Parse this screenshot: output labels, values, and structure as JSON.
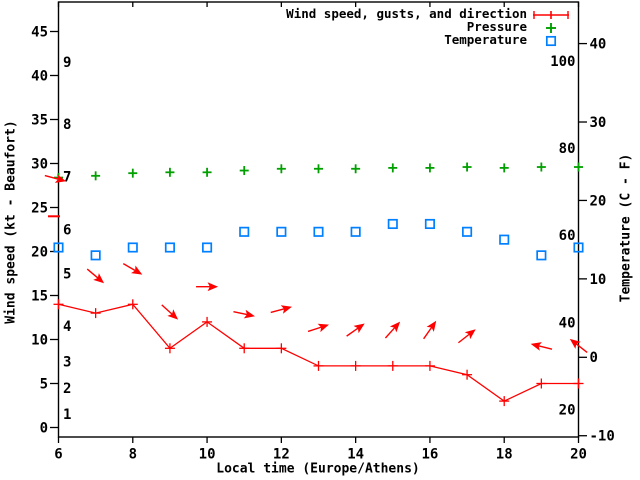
{
  "chart_data": {
    "type": "line",
    "title": "",
    "xlabel": "Local time (Europe/Athens)",
    "ylabel": "Wind speed (kt - Beaufort)",
    "y2label": "Temperature (C - F)",
    "grid": false,
    "legend_position": "top-right",
    "x": [
      6,
      7,
      8,
      9,
      10,
      11,
      12,
      13,
      14,
      15,
      16,
      17,
      18,
      19,
      20
    ],
    "x_tick_labels": [
      "6",
      "8",
      "10",
      "12",
      "14",
      "16",
      "18",
      "20"
    ],
    "x_ticks": [
      6,
      8,
      10,
      12,
      14,
      16,
      18,
      20
    ],
    "left_axis": {
      "unit": "kt",
      "ticks": [
        0,
        5,
        10,
        15,
        20,
        25,
        30,
        35,
        40,
        45
      ],
      "range": [
        -1.1,
        48.3
      ],
      "beaufort_scale": [
        {
          "label": "1",
          "kt": 1.5
        },
        {
          "label": "2",
          "kt": 4.5
        },
        {
          "label": "3",
          "kt": 7.5
        },
        {
          "label": "4",
          "kt": 11.5
        },
        {
          "label": "5",
          "kt": 17.5
        },
        {
          "label": "6",
          "kt": 22.5
        },
        {
          "label": "7",
          "kt": 28.5
        },
        {
          "label": "8",
          "kt": 34.5
        },
        {
          "label": "9",
          "kt": 41.5
        }
      ]
    },
    "right_axis": {
      "unit": "C",
      "ticks_C": [
        -10,
        0,
        10,
        20,
        30,
        40
      ],
      "labels_F": [
        20,
        40,
        60,
        80,
        100
      ],
      "range_C": [
        -10.2,
        45.4
      ]
    },
    "series": [
      {
        "name": "Wind speed, gusts, and direction",
        "marker": "errorbar-line",
        "color": "#ff0000",
        "axis": "left",
        "values_kt": [
          14,
          13,
          14,
          9,
          12,
          9,
          9,
          7,
          7,
          7,
          7,
          6,
          3,
          5,
          5
        ],
        "gust_ticks": [
          {
            "t": 6,
            "kt": 24
          }
        ],
        "direction_arrows": [
          {
            "t": 6,
            "kt": 28.3,
            "angle": 15,
            "dx": -3
          },
          {
            "t": 7,
            "kt": 17.2,
            "angle": 40,
            "dx": 0
          },
          {
            "t": 8,
            "kt": 18.0,
            "angle": 30,
            "dx": 0
          },
          {
            "t": 9,
            "kt": 13.1,
            "angle": 42,
            "dx": 0
          },
          {
            "t": 10,
            "kt": 16.0,
            "angle": 0,
            "dx": 0
          },
          {
            "t": 11,
            "kt": 12.9,
            "angle": 12,
            "dx": 0
          },
          {
            "t": 12,
            "kt": 13.4,
            "angle": -15,
            "dx": 0
          },
          {
            "t": 13,
            "kt": 11.3,
            "angle": -18,
            "dx": 0
          },
          {
            "t": 14,
            "kt": 11.1,
            "angle": -35,
            "dx": 0
          },
          {
            "t": 15,
            "kt": 11.1,
            "angle": -48,
            "dx": 0
          },
          {
            "t": 16,
            "kt": 11.1,
            "angle": -55,
            "dx": 0
          },
          {
            "t": 17,
            "kt": 10.4,
            "angle": -38,
            "dx": 0
          },
          {
            "t": 19,
            "kt": 9.2,
            "angle": 194,
            "dx": 0
          },
          {
            "t": 20,
            "kt": 9.3,
            "angle": 218,
            "dx": 0
          }
        ]
      },
      {
        "name": "Pressure",
        "marker": "plus",
        "color": "#00a000",
        "axis": "left",
        "values": [
          28.4,
          28.6,
          28.9,
          29.0,
          29.0,
          29.2,
          29.4,
          29.4,
          29.4,
          29.5,
          29.5,
          29.6,
          29.5,
          29.6,
          29.6
        ]
      },
      {
        "name": "Temperature",
        "marker": "open-square",
        "color": "#0080ff",
        "axis": "right",
        "values_C": [
          14,
          13,
          14,
          14,
          14,
          16,
          16,
          16,
          16,
          17,
          17,
          16,
          15,
          13,
          14
        ]
      }
    ]
  },
  "colors": {
    "wind": "#ff0000",
    "pressure": "#00a000",
    "temperature": "#0080ff",
    "axis": "#000000",
    "background": "#ffffff"
  }
}
